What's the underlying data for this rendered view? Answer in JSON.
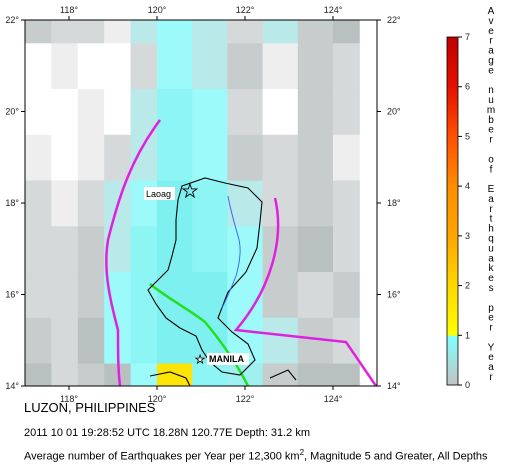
{
  "map": {
    "lon_ticks": [
      "118°",
      "120°",
      "122°",
      "124°"
    ],
    "lat_ticks": [
      "14°",
      "16°",
      "18°",
      "20°",
      "22°"
    ],
    "labels": {
      "laoag": "Laoag",
      "manila": "MANILA"
    },
    "grid_columns": [
      117.0,
      117.6,
      118.2,
      118.8,
      119.4,
      120.0,
      120.8,
      121.6,
      122.4,
      123.2,
      124.0,
      124.6
    ],
    "grid_rows": [
      14.0,
      14.5,
      15.5,
      16.5,
      17.5,
      18.5,
      19.5,
      20.5,
      21.5,
      22.0
    ],
    "cells": [
      [
        "#b9c0c0",
        "#d5d9d9",
        "#c7cdcd",
        "#b9c0c0",
        "#9cfafa",
        "#fce404",
        "#8ef5f5",
        "#a0f0f0",
        "#c7cdcd",
        "#b9c0c0",
        "#b9c0c0"
      ],
      [
        "#c7cdcd",
        "#d5d9d9",
        "#b9c0c0",
        "#9cfafa",
        "#8ef5f5",
        "#7ff0f0",
        "#7ff0f0",
        "#9cfafa",
        "#b9e9e9",
        "#c7cdcd",
        "#d5d9d9"
      ],
      [
        "#d5d9d9",
        "#d5d9d9",
        "#c7cdcd",
        "#9cfafa",
        "#8ef5f5",
        "#7ff0f0",
        "#7ff0f0",
        "#9cfafa",
        "#c7cdcd",
        "#d5d9d9",
        "#c7cdcd"
      ],
      [
        "#d5d9d9",
        "#d5d9d9",
        "#c7cdcd",
        "#b9e9e9",
        "#8ef5f5",
        "#7ff0f0",
        "#8ef5f5",
        "#9cfafa",
        "#c7cdcd",
        "#b9c0c0",
        "#d5d9d9"
      ],
      [
        "#d5d9d9",
        "#eeeeee",
        "#d5d9d9",
        "#b9e9e9",
        "#9cfafa",
        "#7ff0f0",
        "#8ef5f5",
        "#b9e9e9",
        "#d5d9d9",
        "#c7cdcd",
        "#d5d9d9"
      ],
      [
        "#eeeeee",
        "#ffffff",
        "#eeeeee",
        "#d5d9d9",
        "#b9e9e9",
        "#8ef5f5",
        "#9cfafa",
        "#c7cdcd",
        "#d5d9d9",
        "#c7cdcd",
        "#eeeeee"
      ],
      [
        "#ffffff",
        "#ffffff",
        "#eeeeee",
        "#ffffff",
        "#b9e9e9",
        "#8ef5f5",
        "#9cfafa",
        "#d5d9d9",
        "#ffffff",
        "#c7cdcd",
        "#d5d9d9"
      ],
      [
        "#ffffff",
        "#eeeeee",
        "#ffffff",
        "#ffffff",
        "#d5d9d9",
        "#9cfafa",
        "#b9e9e9",
        "#c7cdcd",
        "#eeeeee",
        "#c7cdcd",
        "#d5d9d9"
      ],
      [
        "#c7cdcd",
        "#d5d9d9",
        "#d5d9d9",
        "#eeeeee",
        "#b9e9e9",
        "#9cfafa",
        "#b9e9e9",
        "#d5d9d9",
        "#b9e9e9",
        "#c7cdcd",
        "#b9c0c0"
      ]
    ]
  },
  "legend": {
    "title": "Average number of Earthquakes per Year",
    "ticks": [
      "0",
      "1",
      "2",
      "3",
      "4",
      "5",
      "6",
      "7"
    ],
    "bands": [
      {
        "from": 0,
        "to": 1,
        "c1": "#c2c2c2",
        "c2": "#7fffff"
      },
      {
        "from": 1,
        "to": 2,
        "c1": "#ffff00",
        "c2": "#ffd700"
      },
      {
        "from": 2,
        "to": 3,
        "c1": "#ffd700",
        "c2": "#ffa500"
      },
      {
        "from": 3,
        "to": 4,
        "c1": "#ffa500",
        "c2": "#ff8c00"
      },
      {
        "from": 4,
        "to": 5,
        "c1": "#ff8c00",
        "c2": "#ff5000"
      },
      {
        "from": 5,
        "to": 6,
        "c1": "#ff5000",
        "c2": "#e41000"
      },
      {
        "from": 6,
        "to": 7,
        "c1": "#e41000",
        "c2": "#c00000"
      }
    ]
  },
  "caption": {
    "title": "LUZON, PHILIPPINES",
    "event": "2011 10 01 19:28:52 UTC 18.28N 120.77E Depth: 31.2 km",
    "desc_before": "Average number of Earthquakes per Year per 12,300 km",
    "desc_sup": "2",
    "desc_after": ", Magnitude 5 and Greater, All Depths"
  },
  "colors": {
    "trench": "#e020e0",
    "fault": "#20e020",
    "coast": "#000000",
    "river": "#3060ff"
  }
}
